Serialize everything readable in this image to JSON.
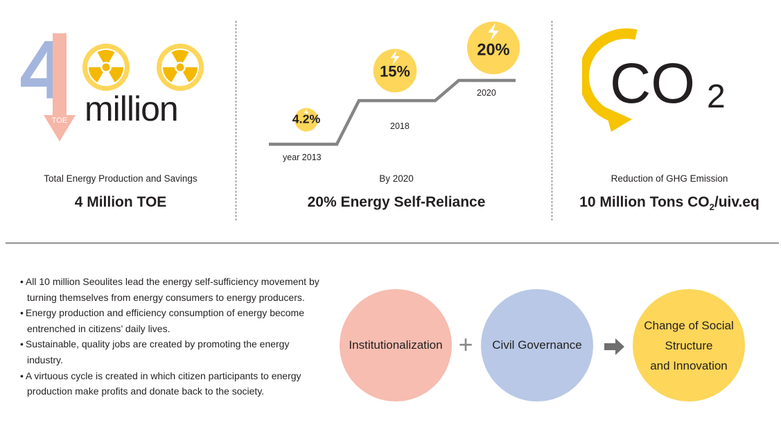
{
  "panel1": {
    "big_digit": "4",
    "arrow_label": "TOE",
    "unit_word": "million",
    "caption": "Total Energy Production and Savings",
    "value": "4 Million TOE",
    "icon": "radiation-icon"
  },
  "panel2": {
    "caption": "By 2020",
    "value": "20% Energy Self-Reliance",
    "icon": "lightning-icon",
    "chart_data": {
      "type": "line",
      "x": [
        "year 2013",
        "2018",
        "2020"
      ],
      "values": [
        4.2,
        15,
        20
      ],
      "data_labels": [
        "4.2%",
        "15%",
        "20%"
      ]
    }
  },
  "panel3": {
    "symbol_main": "CO",
    "symbol_sub": "2",
    "caption": "Reduction of GHG Emission",
    "value_pre": "10 Million Tons CO",
    "value_sub": "2",
    "value_post": "/uiv.eq"
  },
  "bullets": [
    "All 10 million Seoulites lead the energy self-sufficiency movement by turning themselves from energy consumers to energy producers.",
    "Energy production and efficiency consumption of energy become entrenched in citizens’ daily lives.",
    "Sustainable, quality jobs are created by promoting the energy industry.",
    "A virtuous cycle is created in which citizen participants to energy production make profits and donate back to the society."
  ],
  "flow": {
    "circle1": "Institutionalization",
    "operator1": "+",
    "circle2": "Civil Governance",
    "circle3_lines": [
      "Change of Social",
      "Structure",
      "and Innovation"
    ]
  },
  "colors": {
    "yellow": "#fdd65a",
    "pink": "#f6bdb0",
    "blue": "#b8c8e6",
    "grey_line": "#858585"
  }
}
